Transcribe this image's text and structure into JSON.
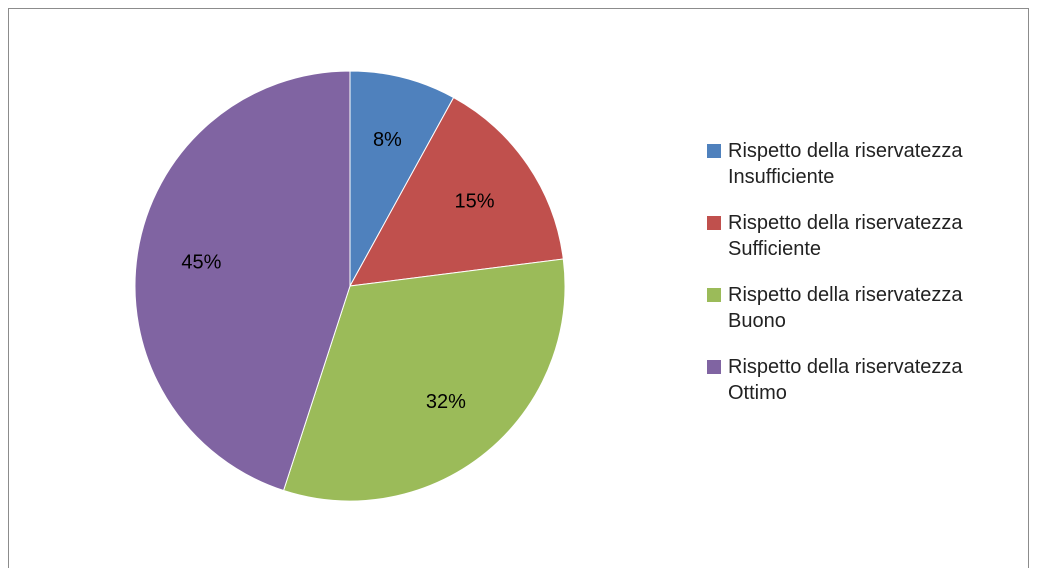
{
  "chart_data": {
    "type": "pie",
    "slices": [
      {
        "category": "Rispetto della riservatezza",
        "level": "Insufficiente",
        "value": 8,
        "label": "8%",
        "color": "#4f81bd"
      },
      {
        "category": "Rispetto della riservatezza",
        "level": "Sufficiente",
        "value": 15,
        "label": "15%",
        "color": "#c0504d"
      },
      {
        "category": "Rispetto della riservatezza",
        "level": "Buono",
        "value": 32,
        "label": "32%",
        "color": "#9bbb59"
      },
      {
        "category": "Rispetto della riservatezza",
        "level": "Ottimo",
        "value": 45,
        "label": "45%",
        "color": "#8064a2"
      }
    ],
    "start_angle_deg": 0,
    "direction": "clockwise",
    "legend_position": "right"
  }
}
